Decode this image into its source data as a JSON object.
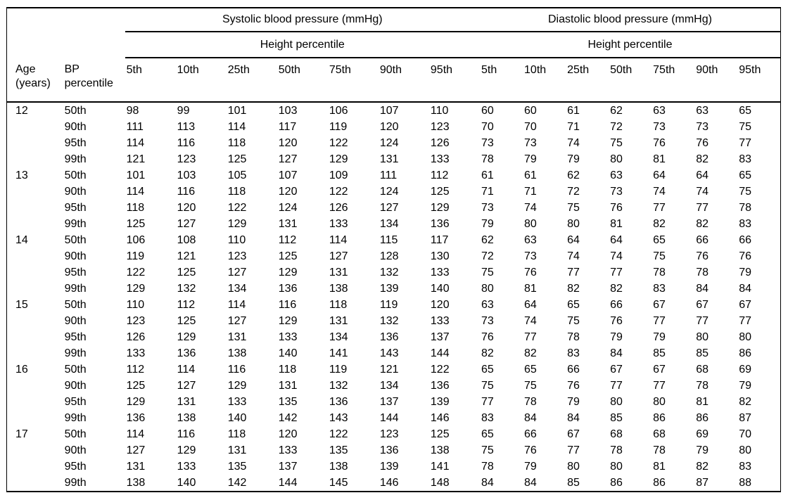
{
  "page": {
    "background": "#ffffff",
    "text_color": "#000000",
    "rule_color": "#000000"
  },
  "table": {
    "group_headers": {
      "systolic": "Systolic blood pressure (mmHg)",
      "diastolic": "Diastolic blood pressure (mmHg)"
    },
    "height_percentile_label": "Height percentile",
    "row_header_labels": {
      "age_line1": "Age",
      "age_line2": "(years)",
      "bp_line1": "BP",
      "bp_line2": "percentile"
    },
    "height_percentile_columns": [
      "5th",
      "10th",
      "25th",
      "50th",
      "75th",
      "90th",
      "95th"
    ],
    "rows": [
      {
        "age": "12",
        "bp_percentile": "50th",
        "systolic": [
          98,
          99,
          101,
          103,
          106,
          107,
          110
        ],
        "diastolic": [
          60,
          60,
          61,
          62,
          63,
          63,
          65
        ]
      },
      {
        "age": "",
        "bp_percentile": "90th",
        "systolic": [
          111,
          113,
          114,
          117,
          119,
          120,
          123
        ],
        "diastolic": [
          70,
          70,
          71,
          72,
          73,
          73,
          75
        ]
      },
      {
        "age": "",
        "bp_percentile": "95th",
        "systolic": [
          114,
          116,
          118,
          120,
          122,
          124,
          126
        ],
        "diastolic": [
          73,
          73,
          74,
          75,
          76,
          76,
          77
        ]
      },
      {
        "age": "",
        "bp_percentile": "99th",
        "systolic": [
          121,
          123,
          125,
          127,
          129,
          131,
          133
        ],
        "diastolic": [
          78,
          79,
          79,
          80,
          81,
          82,
          83
        ]
      },
      {
        "age": "13",
        "bp_percentile": "50th",
        "systolic": [
          101,
          103,
          105,
          107,
          109,
          111,
          112
        ],
        "diastolic": [
          61,
          61,
          62,
          63,
          64,
          64,
          65
        ]
      },
      {
        "age": "",
        "bp_percentile": "90th",
        "systolic": [
          114,
          116,
          118,
          120,
          122,
          124,
          125
        ],
        "diastolic": [
          71,
          71,
          72,
          73,
          74,
          74,
          75
        ]
      },
      {
        "age": "",
        "bp_percentile": "95th",
        "systolic": [
          118,
          120,
          122,
          124,
          126,
          127,
          129
        ],
        "diastolic": [
          73,
          74,
          75,
          76,
          77,
          77,
          78
        ]
      },
      {
        "age": "",
        "bp_percentile": "99th",
        "systolic": [
          125,
          127,
          129,
          131,
          133,
          134,
          136
        ],
        "diastolic": [
          79,
          80,
          80,
          81,
          82,
          82,
          83
        ]
      },
      {
        "age": "14",
        "bp_percentile": "50th",
        "systolic": [
          106,
          108,
          110,
          112,
          114,
          115,
          117
        ],
        "diastolic": [
          62,
          63,
          64,
          64,
          65,
          66,
          66
        ]
      },
      {
        "age": "",
        "bp_percentile": "90th",
        "systolic": [
          119,
          121,
          123,
          125,
          127,
          128,
          130
        ],
        "diastolic": [
          72,
          73,
          74,
          74,
          75,
          76,
          76
        ]
      },
      {
        "age": "",
        "bp_percentile": "95th",
        "systolic": [
          122,
          125,
          127,
          129,
          131,
          132,
          133
        ],
        "diastolic": [
          75,
          76,
          77,
          77,
          78,
          78,
          79
        ]
      },
      {
        "age": "",
        "bp_percentile": "99th",
        "systolic": [
          129,
          132,
          134,
          136,
          138,
          139,
          140
        ],
        "diastolic": [
          80,
          81,
          82,
          82,
          83,
          84,
          84
        ]
      },
      {
        "age": "15",
        "bp_percentile": "50th",
        "systolic": [
          110,
          112,
          114,
          116,
          118,
          119,
          120
        ],
        "diastolic": [
          63,
          64,
          65,
          66,
          67,
          67,
          67
        ]
      },
      {
        "age": "",
        "bp_percentile": "90th",
        "systolic": [
          123,
          125,
          127,
          129,
          131,
          132,
          133
        ],
        "diastolic": [
          73,
          74,
          75,
          76,
          77,
          77,
          77
        ]
      },
      {
        "age": "",
        "bp_percentile": "95th",
        "systolic": [
          126,
          129,
          131,
          133,
          134,
          136,
          137
        ],
        "diastolic": [
          76,
          77,
          78,
          79,
          79,
          80,
          80
        ]
      },
      {
        "age": "",
        "bp_percentile": "99th",
        "systolic": [
          133,
          136,
          138,
          140,
          141,
          143,
          144
        ],
        "diastolic": [
          82,
          82,
          83,
          84,
          85,
          85,
          86
        ]
      },
      {
        "age": "16",
        "bp_percentile": "50th",
        "systolic": [
          112,
          114,
          116,
          118,
          119,
          121,
          122
        ],
        "diastolic": [
          65,
          65,
          66,
          67,
          67,
          68,
          69
        ]
      },
      {
        "age": "",
        "bp_percentile": "90th",
        "systolic": [
          125,
          127,
          129,
          131,
          132,
          134,
          136
        ],
        "diastolic": [
          75,
          75,
          76,
          77,
          77,
          78,
          79
        ]
      },
      {
        "age": "",
        "bp_percentile": "95th",
        "systolic": [
          129,
          131,
          133,
          135,
          136,
          137,
          139
        ],
        "diastolic": [
          77,
          78,
          79,
          80,
          80,
          81,
          82
        ]
      },
      {
        "age": "",
        "bp_percentile": "99th",
        "systolic": [
          136,
          138,
          140,
          142,
          143,
          144,
          146
        ],
        "diastolic": [
          83,
          84,
          84,
          85,
          86,
          86,
          87
        ]
      },
      {
        "age": "17",
        "bp_percentile": "50th",
        "systolic": [
          114,
          116,
          118,
          120,
          122,
          123,
          125
        ],
        "diastolic": [
          65,
          66,
          67,
          68,
          68,
          69,
          70
        ]
      },
      {
        "age": "",
        "bp_percentile": "90th",
        "systolic": [
          127,
          129,
          131,
          133,
          135,
          136,
          138
        ],
        "diastolic": [
          75,
          76,
          77,
          78,
          78,
          79,
          80
        ]
      },
      {
        "age": "",
        "bp_percentile": "95th",
        "systolic": [
          131,
          133,
          135,
          137,
          138,
          139,
          141
        ],
        "diastolic": [
          78,
          79,
          80,
          80,
          81,
          82,
          83
        ]
      },
      {
        "age": "",
        "bp_percentile": "99th",
        "systolic": [
          138,
          140,
          142,
          144,
          145,
          146,
          148
        ],
        "diastolic": [
          84,
          84,
          85,
          86,
          86,
          87,
          88
        ]
      }
    ]
  }
}
